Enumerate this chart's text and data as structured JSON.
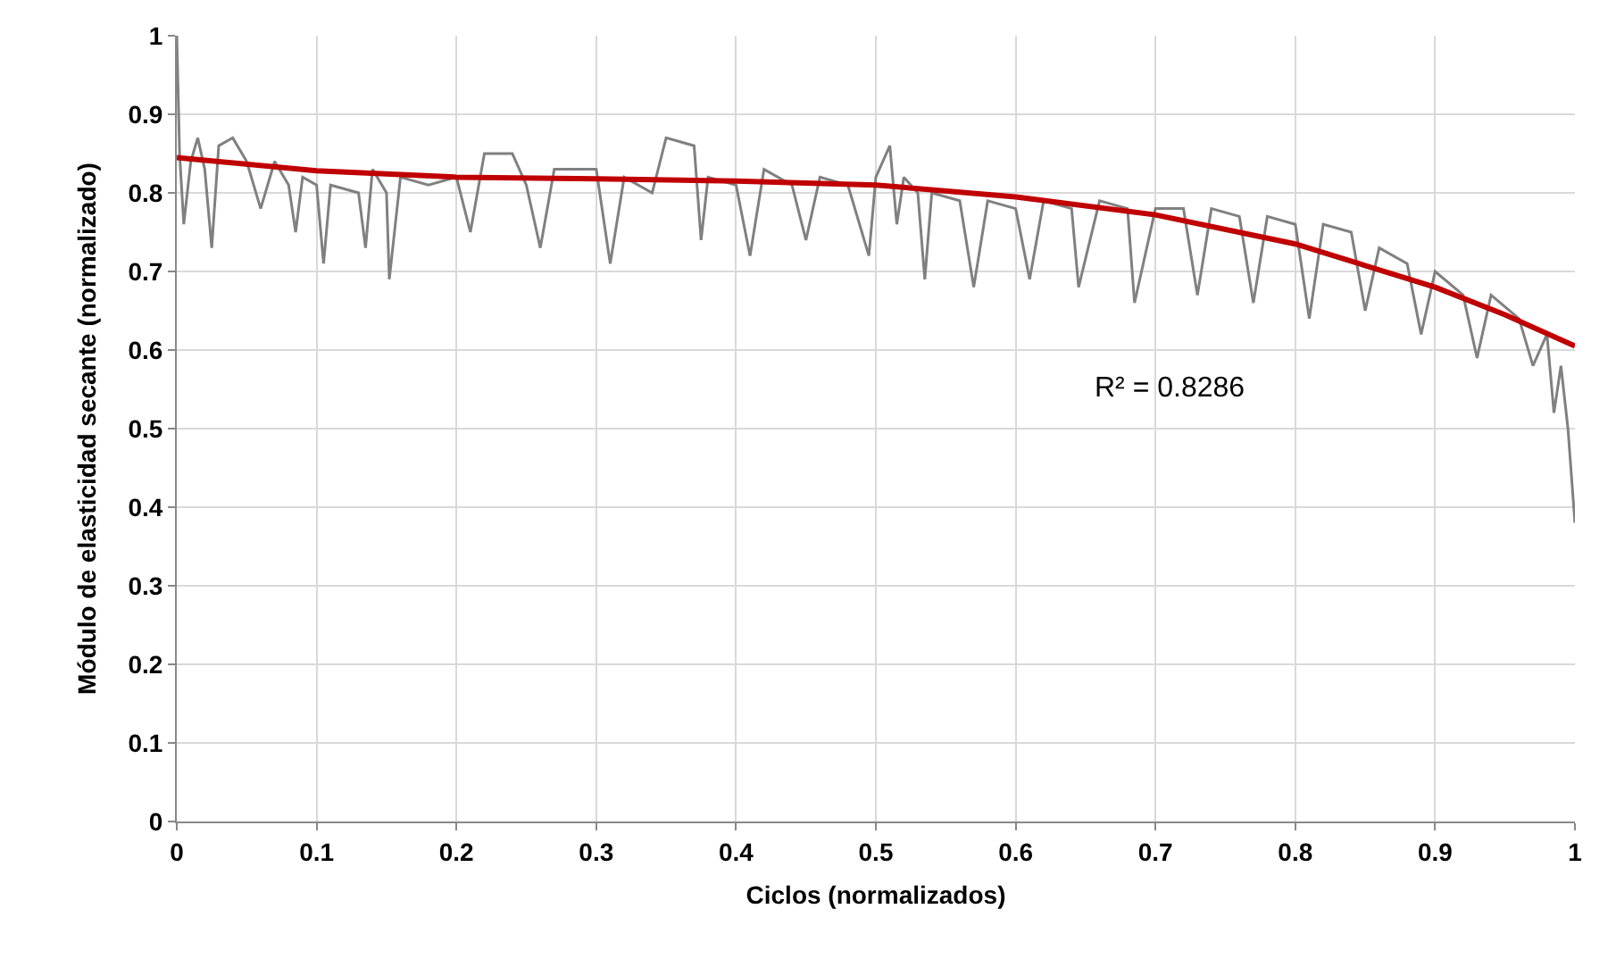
{
  "chart_data": {
    "type": "line",
    "xlabel": "Ciclos (normalizados)",
    "ylabel": "Módulo de elasticidad secante (normalizado)",
    "xlim": [
      0,
      1
    ],
    "xticks": [
      0,
      0.1,
      0.2,
      0.3,
      0.4,
      0.5,
      0.6,
      0.7,
      0.8,
      0.9,
      1
    ],
    "ylim": [
      0,
      1
    ],
    "yticks": [
      0,
      0.1,
      0.2,
      0.3,
      0.4,
      0.5,
      0.6,
      0.7,
      0.8,
      0.9,
      1
    ],
    "grid": true,
    "marker": "none",
    "annotations": [
      "R² = 0.8286"
    ],
    "series": [
      {
        "color": "#808080",
        "line_style": "solid",
        "x": [
          0,
          0.002,
          0.005,
          0.01,
          0.015,
          0.02,
          0.025,
          0.03,
          0.04,
          0.05,
          0.06,
          0.07,
          0.08,
          0.085,
          0.09,
          0.1,
          0.105,
          0.11,
          0.13,
          0.135,
          0.14,
          0.15,
          0.152,
          0.16,
          0.18,
          0.2,
          0.21,
          0.22,
          0.24,
          0.25,
          0.26,
          0.27,
          0.3,
          0.31,
          0.32,
          0.34,
          0.35,
          0.37,
          0.375,
          0.38,
          0.4,
          0.41,
          0.42,
          0.44,
          0.45,
          0.46,
          0.48,
          0.495,
          0.5,
          0.51,
          0.515,
          0.52,
          0.53,
          0.535,
          0.54,
          0.56,
          0.57,
          0.58,
          0.6,
          0.61,
          0.62,
          0.64,
          0.645,
          0.66,
          0.68,
          0.685,
          0.7,
          0.72,
          0.73,
          0.74,
          0.76,
          0.77,
          0.78,
          0.8,
          0.81,
          0.82,
          0.84,
          0.85,
          0.86,
          0.88,
          0.89,
          0.9,
          0.92,
          0.93,
          0.94,
          0.96,
          0.97,
          0.98,
          0.985,
          0.99,
          0.995,
          1
        ],
        "values": [
          1,
          0.85,
          0.76,
          0.84,
          0.87,
          0.83,
          0.73,
          0.86,
          0.87,
          0.84,
          0.78,
          0.84,
          0.81,
          0.75,
          0.82,
          0.81,
          0.71,
          0.81,
          0.8,
          0.73,
          0.83,
          0.8,
          0.69,
          0.82,
          0.81,
          0.82,
          0.75,
          0.85,
          0.85,
          0.81,
          0.73,
          0.83,
          0.83,
          0.71,
          0.82,
          0.8,
          0.87,
          0.86,
          0.74,
          0.82,
          0.81,
          0.72,
          0.83,
          0.81,
          0.74,
          0.82,
          0.81,
          0.72,
          0.82,
          0.86,
          0.76,
          0.82,
          0.8,
          0.69,
          0.8,
          0.79,
          0.68,
          0.79,
          0.78,
          0.69,
          0.79,
          0.78,
          0.68,
          0.79,
          0.78,
          0.66,
          0.78,
          0.78,
          0.67,
          0.78,
          0.77,
          0.66,
          0.77,
          0.76,
          0.64,
          0.76,
          0.75,
          0.65,
          0.73,
          0.71,
          0.62,
          0.7,
          0.67,
          0.59,
          0.67,
          0.64,
          0.58,
          0.62,
          0.52,
          0.58,
          0.5,
          0.38
        ]
      },
      {
        "type": "line",
        "color": "#c00000",
        "line_style": "solid",
        "x": [
          0,
          0.1,
          0.2,
          0.3,
          0.4,
          0.5,
          0.6,
          0.7,
          0.8,
          0.9,
          0.95,
          1
        ],
        "values": [
          0.845,
          0.828,
          0.82,
          0.818,
          0.815,
          0.81,
          0.795,
          0.772,
          0.735,
          0.68,
          0.645,
          0.605
        ]
      }
    ]
  }
}
